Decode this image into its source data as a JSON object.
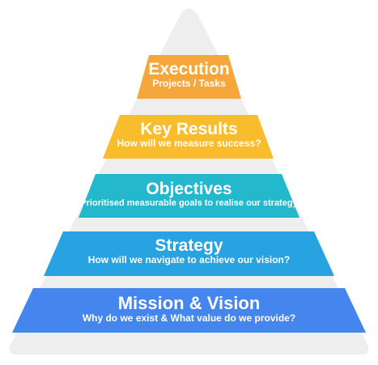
{
  "pyramid": {
    "background_color": "#eeeeee",
    "tiers": [
      {
        "title": "Execution",
        "subtitle": "Projects / Tasks",
        "color": "#f5a73b"
      },
      {
        "title": "Key Results",
        "subtitle": "How will we measure success?",
        "color": "#f9bc2d"
      },
      {
        "title": "Objectives",
        "subtitle": "Prioritised measurable goals to realise our strategy",
        "color": "#24b8cc"
      },
      {
        "title": "Strategy",
        "subtitle": "How will we navigate to achieve our vision?",
        "color": "#27a3e2"
      },
      {
        "title": "Mission & Vision",
        "subtitle": "Why do we exist & What value do we provide?",
        "color": "#4485ee"
      }
    ]
  }
}
